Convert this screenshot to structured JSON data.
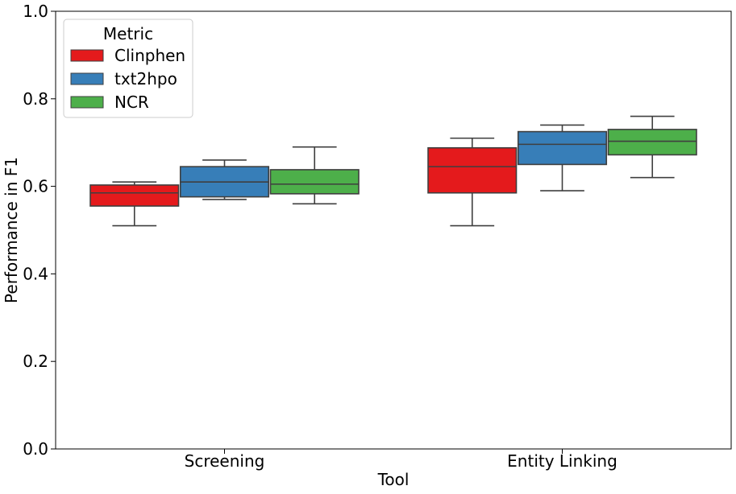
{
  "chart_data": {
    "type": "box",
    "xlabel": "Tool",
    "ylabel": "Performance in F1",
    "ylim": [
      0,
      1.0
    ],
    "yticks": [
      "0.0",
      "0.2",
      "0.4",
      "0.6",
      "0.8",
      "1.0"
    ],
    "categories": [
      "Screening",
      "Entity Linking"
    ],
    "legend": {
      "title": "Metric",
      "placement": "top-left"
    },
    "grid": false,
    "series": [
      {
        "name": "Clinphen",
        "color": "#e41a1c",
        "boxes": [
          {
            "min": 0.51,
            "q1": 0.555,
            "median": 0.585,
            "q3": 0.603,
            "max": 0.61
          },
          {
            "min": 0.51,
            "q1": 0.585,
            "median": 0.645,
            "q3": 0.688,
            "max": 0.71
          }
        ]
      },
      {
        "name": "txt2hpo",
        "color": "#377eb8",
        "boxes": [
          {
            "min": 0.57,
            "q1": 0.576,
            "median": 0.61,
            "q3": 0.645,
            "max": 0.66
          },
          {
            "min": 0.59,
            "q1": 0.65,
            "median": 0.696,
            "q3": 0.725,
            "max": 0.74
          }
        ]
      },
      {
        "name": "NCR",
        "color": "#4daf4a",
        "boxes": [
          {
            "min": 0.56,
            "q1": 0.583,
            "median": 0.605,
            "q3": 0.638,
            "max": 0.69
          },
          {
            "min": 0.62,
            "q1": 0.672,
            "median": 0.703,
            "q3": 0.73,
            "max": 0.76
          }
        ]
      }
    ]
  }
}
